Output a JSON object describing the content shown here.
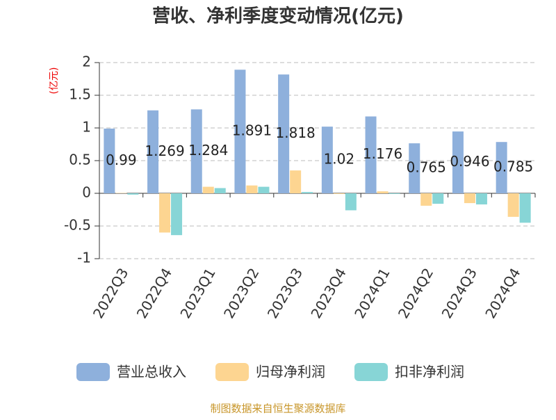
{
  "chart_data": {
    "type": "bar",
    "title": "营收、净利季度变动情况(亿元)",
    "y_label": "(亿元)",
    "categories": [
      "2022Q3",
      "2022Q4",
      "2023Q1",
      "2023Q2",
      "2023Q3",
      "2023Q4",
      "2024Q1",
      "2024Q2",
      "2024Q3",
      "2024Q4"
    ],
    "series": [
      {
        "name": "营业总收入",
        "color": "#8eb0dc",
        "values": [
          0.99,
          1.269,
          1.284,
          1.891,
          1.818,
          1.02,
          1.176,
          0.765,
          0.946,
          0.785
        ],
        "show_labels": true
      },
      {
        "name": "归母净利润",
        "color": "#fdd591",
        "values": [
          0.005,
          -0.6,
          0.1,
          0.12,
          0.35,
          -0.01,
          0.03,
          -0.19,
          -0.15,
          -0.36
        ],
        "show_labels": false
      },
      {
        "name": "扣非净利润",
        "color": "#87d5d6",
        "values": [
          -0.02,
          -0.64,
          0.08,
          0.1,
          0.02,
          -0.26,
          -0.01,
          -0.16,
          -0.17,
          -0.45
        ],
        "show_labels": false
      }
    ],
    "ylim": [
      -1,
      2
    ],
    "yticks": [
      2,
      1.5,
      1,
      0.5,
      0,
      -0.5,
      -1
    ],
    "grid": true,
    "source": "制图数据来自恒生聚源数据库"
  }
}
